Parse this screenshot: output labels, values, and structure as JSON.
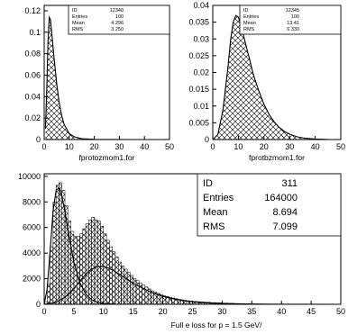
{
  "chart_data": [
    {
      "type": "area",
      "title": "fprotozmom1.for",
      "xlim": [
        0,
        50
      ],
      "ylim": [
        0,
        0.125
      ],
      "xticks": [
        0,
        10,
        20,
        30,
        40,
        50
      ],
      "yticks": [
        0,
        0.02,
        0.04,
        0.06,
        0.08,
        0.1,
        0.12
      ],
      "ytick_labels": [
        "0",
        "0.02",
        "0.04",
        "0.06",
        "0.08",
        "0.1",
        "0.12"
      ],
      "fill_pattern": "crosshatch",
      "curve": [
        [
          0.5,
          0.01
        ],
        [
          1,
          0.045
        ],
        [
          1.5,
          0.09
        ],
        [
          2,
          0.114
        ],
        [
          2.5,
          0.112
        ],
        [
          3,
          0.1
        ],
        [
          4,
          0.075
        ],
        [
          5,
          0.052
        ],
        [
          6,
          0.034
        ],
        [
          7,
          0.022
        ],
        [
          8,
          0.014
        ],
        [
          10,
          0.0055
        ],
        [
          12,
          0.0025
        ],
        [
          15,
          0.0008
        ],
        [
          20,
          0.0002
        ],
        [
          25,
          0.0001
        ],
        [
          35,
          2e-05
        ],
        [
          50,
          0
        ]
      ],
      "stats": {
        "labels": [
          "ID",
          "Entries",
          "Mean",
          "RMS"
        ],
        "values": [
          "12340",
          "100",
          "4.296",
          "3.250"
        ]
      }
    },
    {
      "type": "area",
      "title": "fprotbzmom1.for",
      "xlim": [
        0,
        50
      ],
      "ylim": [
        0,
        0.04
      ],
      "xticks": [
        0,
        10,
        20,
        30,
        40,
        50
      ],
      "yticks": [
        0,
        0.005,
        0.01,
        0.015,
        0.02,
        0.025,
        0.03,
        0.035,
        0.04
      ],
      "ytick_labels": [
        "0",
        "0.005",
        "0.01",
        "0.015",
        "0.02",
        "0.025",
        "0.03",
        "0.035",
        "0.04"
      ],
      "fill_pattern": "crosshatch",
      "curve": [
        [
          0,
          0
        ],
        [
          2,
          0.0015
        ],
        [
          4,
          0.009
        ],
        [
          6,
          0.022
        ],
        [
          7,
          0.03
        ],
        [
          8,
          0.035
        ],
        [
          9,
          0.037
        ],
        [
          10,
          0.0365
        ],
        [
          11,
          0.034
        ],
        [
          12,
          0.031
        ],
        [
          14,
          0.025
        ],
        [
          16,
          0.019
        ],
        [
          18,
          0.0145
        ],
        [
          20,
          0.0105
        ],
        [
          22,
          0.0075
        ],
        [
          24,
          0.0052
        ],
        [
          26,
          0.0036
        ],
        [
          28,
          0.0024
        ],
        [
          30,
          0.0016
        ],
        [
          33,
          0.0008
        ],
        [
          36,
          0.0004
        ],
        [
          40,
          0.00015
        ],
        [
          45,
          3e-05
        ],
        [
          50,
          0
        ]
      ],
      "stats": {
        "labels": [
          "ID",
          "Entries",
          "Mean",
          "RMS"
        ],
        "values": [
          "12345",
          "100",
          "13.41",
          "6.330"
        ]
      }
    },
    {
      "type": "bar",
      "xlabel": "Full e loss for p = 1.5 GeV/",
      "xlim": [
        0,
        50
      ],
      "ylim": [
        0,
        10200
      ],
      "xticks": [
        0,
        5,
        10,
        15,
        20,
        25,
        30,
        35,
        40,
        45,
        50
      ],
      "yticks": [
        0,
        2000,
        4000,
        6000,
        8000,
        10000
      ],
      "fill_pattern": "crosshatch",
      "histogram_bin_width": 0.5,
      "histogram": [
        [
          0,
          200
        ],
        [
          0.5,
          1600
        ],
        [
          1,
          4500
        ],
        [
          1.5,
          8000
        ],
        [
          2,
          9300
        ],
        [
          2.5,
          9500
        ],
        [
          3,
          8900
        ],
        [
          3.5,
          7700
        ],
        [
          4,
          6500
        ],
        [
          4.5,
          5700
        ],
        [
          5,
          5300
        ],
        [
          5.5,
          5300
        ],
        [
          6,
          5500
        ],
        [
          6.5,
          5900
        ],
        [
          7,
          6300
        ],
        [
          7.5,
          6600
        ],
        [
          8,
          6800
        ],
        [
          8.5,
          6600
        ],
        [
          9,
          6500
        ],
        [
          9.5,
          6100
        ],
        [
          10,
          5500
        ],
        [
          10.5,
          5000
        ],
        [
          11,
          4500
        ],
        [
          11.5,
          4100
        ],
        [
          12,
          3700
        ],
        [
          12.5,
          3300
        ],
        [
          13,
          3000
        ],
        [
          13.5,
          2750
        ],
        [
          14,
          2500
        ],
        [
          14.5,
          2250
        ],
        [
          15,
          2000
        ],
        [
          15.5,
          1850
        ],
        [
          16,
          1650
        ],
        [
          16.5,
          1500
        ],
        [
          17,
          1350
        ],
        [
          17.5,
          1200
        ],
        [
          18,
          1050
        ],
        [
          18.5,
          950
        ],
        [
          19,
          850
        ],
        [
          19.5,
          760
        ],
        [
          20,
          680
        ],
        [
          20.5,
          610
        ],
        [
          21,
          550
        ],
        [
          21.5,
          490
        ],
        [
          22,
          440
        ],
        [
          22.5,
          390
        ],
        [
          23,
          350
        ],
        [
          23.5,
          310
        ],
        [
          24,
          280
        ],
        [
          24.5,
          250
        ],
        [
          25,
          220
        ],
        [
          26,
          190
        ],
        [
          27,
          160
        ],
        [
          28,
          130
        ],
        [
          29,
          110
        ],
        [
          30,
          90
        ],
        [
          31,
          75
        ],
        [
          32,
          60
        ],
        [
          33,
          50
        ],
        [
          34,
          40
        ],
        [
          35,
          32
        ],
        [
          36,
          26
        ],
        [
          37,
          20
        ],
        [
          38,
          16
        ],
        [
          39,
          12
        ],
        [
          40,
          10
        ],
        [
          41,
          8
        ],
        [
          42,
          6
        ],
        [
          43,
          5
        ],
        [
          44,
          4
        ],
        [
          45,
          3
        ],
        [
          46,
          2
        ],
        [
          47,
          2
        ],
        [
          48,
          1
        ],
        [
          49,
          1
        ]
      ],
      "curves": [
        [
          [
            0,
            0
          ],
          [
            0.5,
            1200
          ],
          [
            1,
            4200
          ],
          [
            1.5,
            7300
          ],
          [
            2,
            8900
          ],
          [
            2.5,
            9100
          ],
          [
            3,
            8400
          ],
          [
            3.5,
            7300
          ],
          [
            4,
            5800
          ],
          [
            5,
            3300
          ],
          [
            6,
            1700
          ],
          [
            7,
            800
          ],
          [
            8,
            360
          ],
          [
            9,
            160
          ],
          [
            10,
            70
          ],
          [
            12,
            15
          ],
          [
            15,
            2
          ],
          [
            20,
            0
          ]
        ],
        [
          [
            0,
            0
          ],
          [
            2,
            150
          ],
          [
            4,
            700
          ],
          [
            5,
            1200
          ],
          [
            6,
            1800
          ],
          [
            7,
            2350
          ],
          [
            8,
            2750
          ],
          [
            9,
            2950
          ],
          [
            10,
            2950
          ],
          [
            11,
            2800
          ],
          [
            12,
            2550
          ],
          [
            13,
            2250
          ],
          [
            14,
            1950
          ],
          [
            15,
            1650
          ],
          [
            16,
            1400
          ],
          [
            18,
            950
          ],
          [
            20,
            620
          ],
          [
            22,
            400
          ],
          [
            24,
            250
          ],
          [
            26,
            150
          ],
          [
            28,
            95
          ],
          [
            30,
            60
          ],
          [
            35,
            15
          ],
          [
            40,
            4
          ],
          [
            50,
            0
          ]
        ]
      ],
      "stats": {
        "labels": [
          "ID",
          "Entries",
          "Mean",
          "RMS"
        ],
        "values": [
          "311",
          "164000",
          "8.694",
          "7.099"
        ]
      }
    }
  ]
}
